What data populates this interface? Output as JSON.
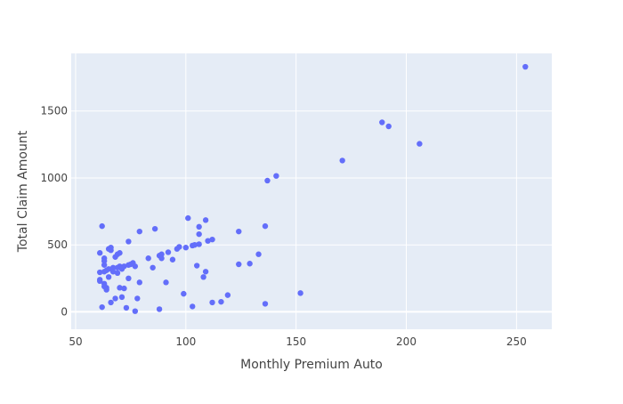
{
  "chart_data": {
    "type": "scatter",
    "title": "",
    "xlabel": "Monthly Premium Auto",
    "ylabel": "Total Claim Amount",
    "xlim": [
      48,
      266
    ],
    "ylim": [
      -130,
      1930
    ],
    "x_ticks": [
      50,
      100,
      150,
      200,
      250
    ],
    "x_tick_labels": [
      "50",
      "100",
      "150",
      "200",
      "250"
    ],
    "y_ticks": [
      0,
      500,
      1000,
      1500
    ],
    "y_tick_labels": [
      "0",
      "500",
      "1000",
      "1500"
    ],
    "grid": true,
    "legend": "none",
    "colors": {
      "plot_bg": "#E5ECF6",
      "grid": "#ffffff",
      "marker": "#636EFA",
      "text": "#444444"
    },
    "series": [
      {
        "points": [
          [
            61,
            440
          ],
          [
            62,
            640
          ],
          [
            61,
            295
          ],
          [
            61,
            240
          ],
          [
            61,
            230
          ],
          [
            62,
            35
          ],
          [
            63,
            400
          ],
          [
            63,
            380
          ],
          [
            63,
            350
          ],
          [
            63,
            300
          ],
          [
            63,
            210
          ],
          [
            63,
            190
          ],
          [
            64,
            165
          ],
          [
            64,
            180
          ],
          [
            64,
            310
          ],
          [
            65,
            320
          ],
          [
            65,
            260
          ],
          [
            65,
            470
          ],
          [
            66,
            480
          ],
          [
            66,
            460
          ],
          [
            66,
            70
          ],
          [
            67,
            300
          ],
          [
            67,
            330
          ],
          [
            68,
            410
          ],
          [
            68,
            100
          ],
          [
            69,
            290
          ],
          [
            69,
            330
          ],
          [
            69,
            430
          ],
          [
            70,
            340
          ],
          [
            70,
            440
          ],
          [
            70,
            180
          ],
          [
            71,
            110
          ],
          [
            71,
            320
          ],
          [
            72,
            340
          ],
          [
            72,
            175
          ],
          [
            73,
            30
          ],
          [
            74,
            525
          ],
          [
            74,
            350
          ],
          [
            74,
            250
          ],
          [
            75,
            355
          ],
          [
            76,
            365
          ],
          [
            77,
            340
          ],
          [
            77,
            5
          ],
          [
            78,
            100
          ],
          [
            79,
            600
          ],
          [
            79,
            220
          ],
          [
            83,
            400
          ],
          [
            85,
            330
          ],
          [
            86,
            620
          ],
          [
            88,
            420
          ],
          [
            88,
            20
          ],
          [
            89,
            430
          ],
          [
            89,
            400
          ],
          [
            91,
            220
          ],
          [
            92,
            445
          ],
          [
            94,
            390
          ],
          [
            96,
            470
          ],
          [
            97,
            485
          ],
          [
            99,
            135
          ],
          [
            100,
            480
          ],
          [
            101,
            700
          ],
          [
            103,
            40
          ],
          [
            103,
            495
          ],
          [
            104,
            500
          ],
          [
            105,
            345
          ],
          [
            106,
            505
          ],
          [
            106,
            635
          ],
          [
            106,
            580
          ],
          [
            108,
            260
          ],
          [
            109,
            685
          ],
          [
            109,
            300
          ],
          [
            110,
            530
          ],
          [
            112,
            540
          ],
          [
            112,
            70
          ],
          [
            116,
            75
          ],
          [
            119,
            125
          ],
          [
            124,
            600
          ],
          [
            124,
            355
          ],
          [
            129,
            360
          ],
          [
            133,
            430
          ],
          [
            136,
            640
          ],
          [
            136,
            60
          ],
          [
            137,
            980
          ],
          [
            141,
            1015
          ],
          [
            152,
            140
          ],
          [
            171,
            1130
          ],
          [
            189,
            1415
          ],
          [
            192,
            1385
          ],
          [
            206,
            1255
          ],
          [
            254,
            1830
          ]
        ]
      }
    ]
  }
}
